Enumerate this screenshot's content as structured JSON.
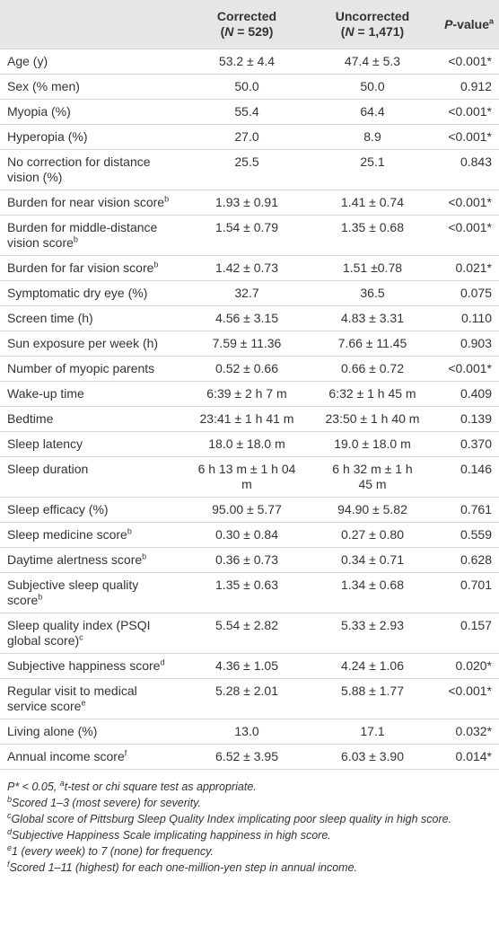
{
  "table": {
    "header": [
      {
        "line1": "Corrected",
        "line2": {
          "pre": "(",
          "italic": "N",
          "post": " = 529)"
        }
      },
      {
        "line1": "Uncorrected",
        "line2": {
          "pre": "(",
          "italic": "N",
          "post": " = 1,471)"
        }
      },
      {
        "italic": "P",
        "text": "-value",
        "sup": "a"
      }
    ],
    "rows": [
      {
        "label": {
          "text": "Age (y)"
        },
        "corrected": "53.2 ± 4.4",
        "uncorrected": "47.4 ± 5.3",
        "p": "<0.001*"
      },
      {
        "label": {
          "text": "Sex (% men)"
        },
        "corrected": "50.0",
        "uncorrected": "50.0",
        "p": "0.912"
      },
      {
        "label": {
          "text": "Myopia (%)"
        },
        "corrected": "55.4",
        "uncorrected": "64.4",
        "p": "<0.001*"
      },
      {
        "label": {
          "text": "Hyperopia (%)"
        },
        "corrected": "27.0",
        "uncorrected": "8.9",
        "p": "<0.001*"
      },
      {
        "label": {
          "text": "No correction for distance vision (%)"
        },
        "corrected": "25.5",
        "uncorrected": "25.1",
        "p": "0.843"
      },
      {
        "label": {
          "text": "Burden for near vision score",
          "sup": "b"
        },
        "corrected": "1.93 ± 0.91",
        "uncorrected": "1.41 ± 0.74",
        "p": "<0.001*"
      },
      {
        "label": {
          "text": "Burden for middle-distance vision score",
          "sup": "b"
        },
        "corrected": "1.54 ± 0.79",
        "uncorrected": "1.35 ± 0.68",
        "p": "<0.001*"
      },
      {
        "label": {
          "text": "Burden for far vision score",
          "sup": "b"
        },
        "corrected": "1.42 ± 0.73",
        "uncorrected": "1.51 ±0.78",
        "p": "0.021*"
      },
      {
        "label": {
          "text": "Symptomatic dry eye (%)"
        },
        "corrected": "32.7",
        "uncorrected": "36.5",
        "p": "0.075"
      },
      {
        "label": {
          "text": "Screen time (h)"
        },
        "corrected": "4.56 ± 3.15",
        "uncorrected": "4.83 ± 3.31",
        "p": "0.110"
      },
      {
        "label": {
          "text": "Sun exposure per week (h)"
        },
        "corrected": "7.59 ± 11.36",
        "uncorrected": "7.66 ± 11.45",
        "p": "0.903"
      },
      {
        "label": {
          "text": "Number of myopic parents"
        },
        "corrected": "0.52 ± 0.66",
        "uncorrected": "0.66 ± 0.72",
        "p": "<0.001*"
      },
      {
        "label": {
          "text": "Wake-up time"
        },
        "corrected": "6:39 ± 2 h 7 m",
        "uncorrected": "6:32 ± 1 h 45 m",
        "p": "0.409"
      },
      {
        "label": {
          "text": "Bedtime"
        },
        "corrected": "23:41 ± 1 h 41 m",
        "uncorrected": "23:50 ± 1 h 40 m",
        "p": "0.139"
      },
      {
        "label": {
          "text": "Sleep latency"
        },
        "corrected": "18.0 ± 18.0 m",
        "uncorrected": "19.0 ± 18.0 m",
        "p": "0.370"
      },
      {
        "label": {
          "text": "Sleep duration"
        },
        "corrected": "6 h 13 m ± 1 h 04 m",
        "uncorrected": "6 h 32 m ± 1 h 45 m",
        "p": "0.146"
      },
      {
        "label": {
          "text": "Sleep efficacy (%)"
        },
        "corrected": "95.00 ± 5.77",
        "uncorrected": "94.90 ± 5.82",
        "p": "0.761"
      },
      {
        "label": {
          "text": "Sleep medicine score",
          "sup": "b"
        },
        "corrected": "0.30 ± 0.84",
        "uncorrected": "0.27 ± 0.80",
        "p": "0.559"
      },
      {
        "label": {
          "text": "Daytime alertness score",
          "sup": "b"
        },
        "corrected": "0.36 ± 0.73",
        "uncorrected": "0.34 ± 0.71",
        "p": "0.628"
      },
      {
        "label": {
          "text": "Subjective sleep quality score",
          "sup": "b"
        },
        "corrected": "1.35 ± 0.63",
        "uncorrected": "1.34 ± 0.68",
        "p": "0.701"
      },
      {
        "label": {
          "text": "Sleep quality index (PSQI global score)",
          "sup": "c"
        },
        "corrected": "5.54 ± 2.82",
        "uncorrected": "5.33 ± 2.93",
        "p": "0.157"
      },
      {
        "label": {
          "text": "Subjective happiness score",
          "sup": "d"
        },
        "corrected": "4.36 ± 1.05",
        "uncorrected": "4.24 ± 1.06",
        "p": "0.020*"
      },
      {
        "label": {
          "text": "Regular visit to medical service score",
          "sup": "e"
        },
        "corrected": "5.28 ± 2.01",
        "uncorrected": "5.88 ± 1.77",
        "p": "<0.001*"
      },
      {
        "label": {
          "text": "Living alone (%)"
        },
        "corrected": "13.0",
        "uncorrected": "17.1",
        "p": "0.032*"
      },
      {
        "label": {
          "text": "Annual income score",
          "sup": "f"
        },
        "corrected": "6.52 ± 3.95",
        "uncorrected": "6.03 ± 3.90",
        "p": "0.014*"
      }
    ]
  },
  "footnotes": [
    {
      "pre": "P* < 0.05, ",
      "sup": "a",
      "text": "t-test or chi square test as appropriate."
    },
    {
      "sup": "b",
      "text": "Scored 1–3 (most severe) for severity."
    },
    {
      "sup": "c",
      "text": "Global score of Pittsburg Sleep Quality Index implicating poor sleep quality in high score."
    },
    {
      "sup": "d",
      "text": "Subjective Happiness Scale implicating happiness in high score."
    },
    {
      "sup": "e",
      "text": "1 (every week) to 7 (none) for frequency."
    },
    {
      "sup": "f",
      "text": "Scored 1–11 (highest) for each one-million-yen step in annual income."
    }
  ]
}
